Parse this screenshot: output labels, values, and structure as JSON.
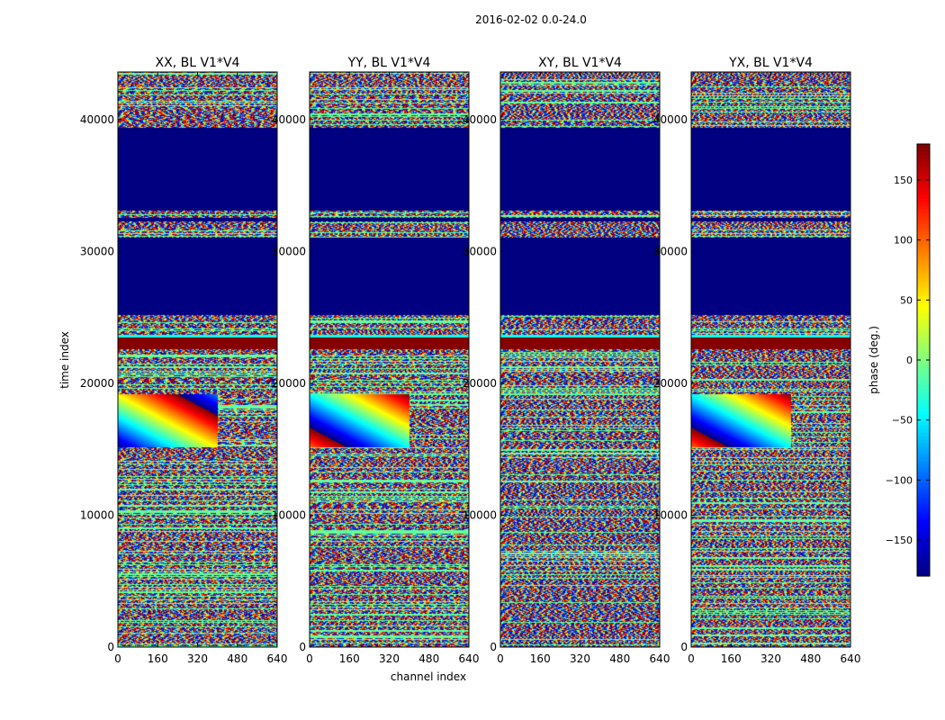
{
  "figure": {
    "suptitle": "2016-02-02 0.0-24.0"
  },
  "chart_data": {
    "type": "heatmap",
    "title": "2016-02-02 0.0-24.0",
    "xlabel": "channel index",
    "ylabel": "time index",
    "xlim": [
      0,
      640
    ],
    "ylim": [
      0,
      43600
    ],
    "xticks": [
      0,
      160,
      320,
      480,
      640
    ],
    "yticks": [
      0,
      10000,
      20000,
      30000,
      40000
    ],
    "panels": [
      {
        "title": "XX, BL V1*V4",
        "pol": "XX"
      },
      {
        "title": "YY, BL V1*V4",
        "pol": "YY"
      },
      {
        "title": "XY, BL V1*V4",
        "pol": "XY"
      },
      {
        "title": "YX, BL V1*V4",
        "pol": "YX"
      }
    ],
    "colorbar": {
      "label": "phase (deg.)",
      "range": [
        -180,
        180
      ],
      "ticks": [
        -150,
        -100,
        -50,
        0,
        50,
        100,
        150
      ],
      "colormap": "jet"
    },
    "bands": [
      {
        "y0": 25200,
        "y1": 31100,
        "level": -180
      },
      {
        "y0": 32300,
        "y1": 32600,
        "level": -180
      },
      {
        "y0": 33100,
        "y1": 39400,
        "level": -180
      },
      {
        "y0": 22600,
        "y1": 23500,
        "level": 178
      },
      {
        "y0": 23500,
        "y1": 23700,
        "level": -40
      }
    ]
  }
}
